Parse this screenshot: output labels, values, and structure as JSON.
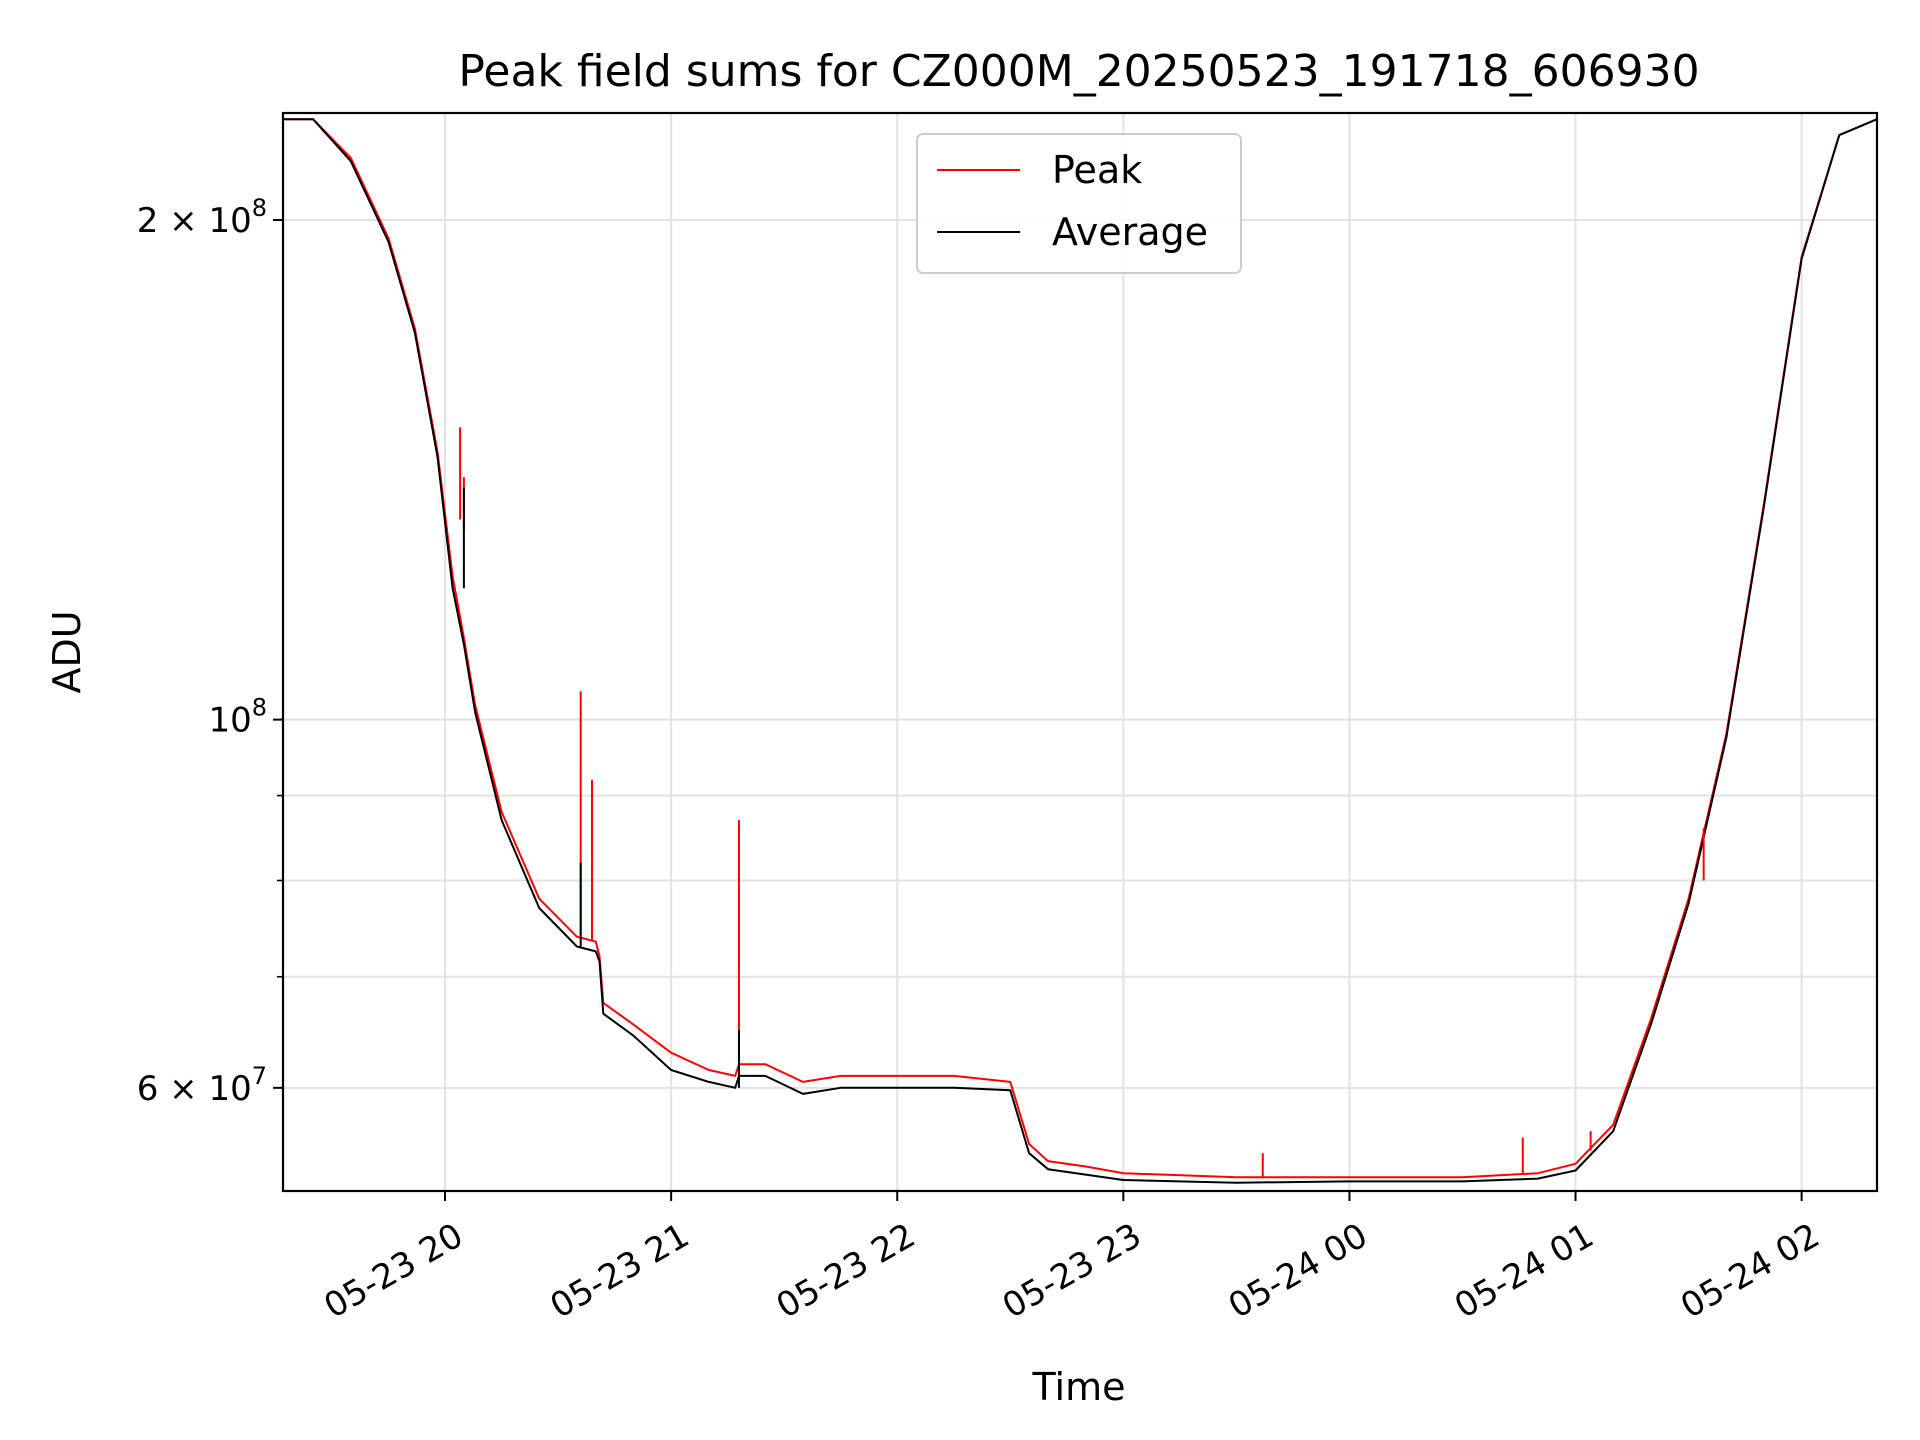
{
  "chart_data": {
    "type": "line",
    "title": "Peak field sums for CZ000M_20250523_191718_606930",
    "xlabel": "Time",
    "ylabel": "ADU",
    "yscale": "log",
    "ylim": [
      52000000,
      232000000
    ],
    "xlim": [
      "2025-05-23 19:17",
      "2025-05-24 02:20"
    ],
    "grid": true,
    "legend": "top-center",
    "x_ticks": [
      {
        "value": "2025-05-23 20:00",
        "label": "05-23 20"
      },
      {
        "value": "2025-05-23 21:00",
        "label": "05-23 21"
      },
      {
        "value": "2025-05-23 22:00",
        "label": "05-23 22"
      },
      {
        "value": "2025-05-23 23:00",
        "label": "05-23 23"
      },
      {
        "value": "2025-05-24 00:00",
        "label": "05-24 00"
      },
      {
        "value": "2025-05-24 01:00",
        "label": "05-24 01"
      },
      {
        "value": "2025-05-24 02:00",
        "label": "05-24 02"
      }
    ],
    "y_ticks": [
      {
        "value": 60000000,
        "label": "6 × 10",
        "exp": "7"
      },
      {
        "value": 100000000,
        "label": "10",
        "exp": "8"
      },
      {
        "value": 200000000,
        "label": "2 × 10",
        "exp": "8"
      }
    ],
    "y_minor_ticks": [
      70000000,
      80000000,
      90000000
    ],
    "series": [
      {
        "name": "Peak",
        "color": "#ff0000",
        "x": [
          "2025-05-23 19:17",
          "2025-05-23 19:25",
          "2025-05-23 19:35",
          "2025-05-23 19:45",
          "2025-05-23 19:52",
          "2025-05-23 19:58",
          "2025-05-23 20:02",
          "2025-05-23 20:05",
          "2025-05-23 20:08",
          "2025-05-23 20:15",
          "2025-05-23 20:25",
          "2025-05-23 20:35",
          "2025-05-23 20:40",
          "2025-05-23 20:41",
          "2025-05-23 20:42",
          "2025-05-23 20:50",
          "2025-05-23 21:00",
          "2025-05-23 21:10",
          "2025-05-23 21:17",
          "2025-05-23 21:18",
          "2025-05-23 21:19",
          "2025-05-23 21:25",
          "2025-05-23 21:35",
          "2025-05-23 21:45",
          "2025-05-23 22:00",
          "2025-05-23 22:15",
          "2025-05-23 22:30",
          "2025-05-23 22:35",
          "2025-05-23 22:40",
          "2025-05-23 22:50",
          "2025-05-23 23:00",
          "2025-05-23 23:30",
          "2025-05-24 00:00",
          "2025-05-24 00:30",
          "2025-05-24 00:50",
          "2025-05-24 01:00",
          "2025-05-24 01:10",
          "2025-05-24 01:20",
          "2025-05-24 01:30",
          "2025-05-24 01:40",
          "2025-05-24 01:50",
          "2025-05-24 02:00",
          "2025-05-24 02:10",
          "2025-05-24 02:20"
        ],
        "values": [
          230000000,
          230000000,
          218000000,
          195000000,
          172000000,
          145000000,
          122000000,
          112000000,
          102000000,
          88000000,
          78000000,
          74000000,
          73500000,
          72000000,
          67500000,
          65500000,
          63000000,
          61500000,
          61000000,
          62000000,
          62000000,
          62000000,
          60500000,
          61000000,
          61000000,
          61000000,
          60500000,
          55500000,
          54200000,
          53800000,
          53300000,
          53000000,
          53000000,
          53000000,
          53300000,
          54000000,
          57000000,
          66000000,
          78000000,
          98000000,
          135000000,
          190000000,
          225000000,
          230000000
        ]
      },
      {
        "name": "Average",
        "color": "#000000",
        "x": [
          "2025-05-23 19:17",
          "2025-05-23 19:25",
          "2025-05-23 19:35",
          "2025-05-23 19:45",
          "2025-05-23 19:52",
          "2025-05-23 19:58",
          "2025-05-23 20:02",
          "2025-05-23 20:05",
          "2025-05-23 20:08",
          "2025-05-23 20:15",
          "2025-05-23 20:25",
          "2025-05-23 20:35",
          "2025-05-23 20:40",
          "2025-05-23 20:41",
          "2025-05-23 20:42",
          "2025-05-23 20:50",
          "2025-05-23 21:00",
          "2025-05-23 21:10",
          "2025-05-23 21:17",
          "2025-05-23 21:18",
          "2025-05-23 21:19",
          "2025-05-23 21:25",
          "2025-05-23 21:35",
          "2025-05-23 21:45",
          "2025-05-23 22:00",
          "2025-05-23 22:15",
          "2025-05-23 22:30",
          "2025-05-23 22:35",
          "2025-05-23 22:40",
          "2025-05-23 22:50",
          "2025-05-23 23:00",
          "2025-05-23 23:30",
          "2025-05-24 00:00",
          "2025-05-24 00:30",
          "2025-05-24 00:50",
          "2025-05-24 01:00",
          "2025-05-24 01:10",
          "2025-05-24 01:20",
          "2025-05-24 01:30",
          "2025-05-24 01:40",
          "2025-05-24 01:50",
          "2025-05-24 02:00",
          "2025-05-24 02:10",
          "2025-05-24 02:20"
        ],
        "values": [
          230000000,
          230000000,
          217000000,
          194000000,
          171000000,
          144000000,
          120000000,
          111000000,
          101000000,
          87000000,
          77000000,
          73000000,
          72500000,
          71500000,
          66500000,
          64500000,
          61500000,
          60500000,
          60000000,
          61000000,
          61000000,
          61000000,
          59500000,
          60000000,
          60000000,
          60000000,
          59800000,
          54800000,
          53600000,
          53200000,
          52800000,
          52600000,
          52700000,
          52700000,
          52900000,
          53500000,
          56500000,
          65500000,
          77500000,
          97500000,
          134500000,
          189500000,
          225000000,
          230000000
        ]
      }
    ],
    "spikes": [
      {
        "series": "Peak",
        "x": "2025-05-23 20:04",
        "value": 150000000,
        "base": 132000000
      },
      {
        "series": "Peak",
        "x": "2025-05-23 20:05",
        "value": 140000000,
        "base": 130000000
      },
      {
        "series": "Peak",
        "x": "2025-05-23 20:36",
        "value": 104000000,
        "base": 74000000
      },
      {
        "series": "Peak",
        "x": "2025-05-23 20:39",
        "value": 92000000,
        "base": 73500000
      },
      {
        "series": "Peak",
        "x": "2025-05-23 21:18",
        "value": 87000000,
        "base": 61000000
      },
      {
        "series": "Peak",
        "x": "2025-05-23 23:37",
        "value": 54800000,
        "base": 53000000
      },
      {
        "series": "Peak",
        "x": "2025-05-24 00:46",
        "value": 56000000,
        "base": 53300000
      },
      {
        "series": "Peak",
        "x": "2025-05-24 01:04",
        "value": 56500000,
        "base": 55000000
      },
      {
        "series": "Peak",
        "x": "2025-05-24 01:34",
        "value": 86000000,
        "base": 80000000
      },
      {
        "series": "Average",
        "x": "2025-05-23 20:36",
        "value": 82000000,
        "base": 73000000
      },
      {
        "series": "Average",
        "x": "2025-05-23 21:18",
        "value": 65000000,
        "base": 60000000
      },
      {
        "series": "Average",
        "x": "2025-05-23 20:05",
        "value": 138000000,
        "base": 120000000
      }
    ]
  }
}
